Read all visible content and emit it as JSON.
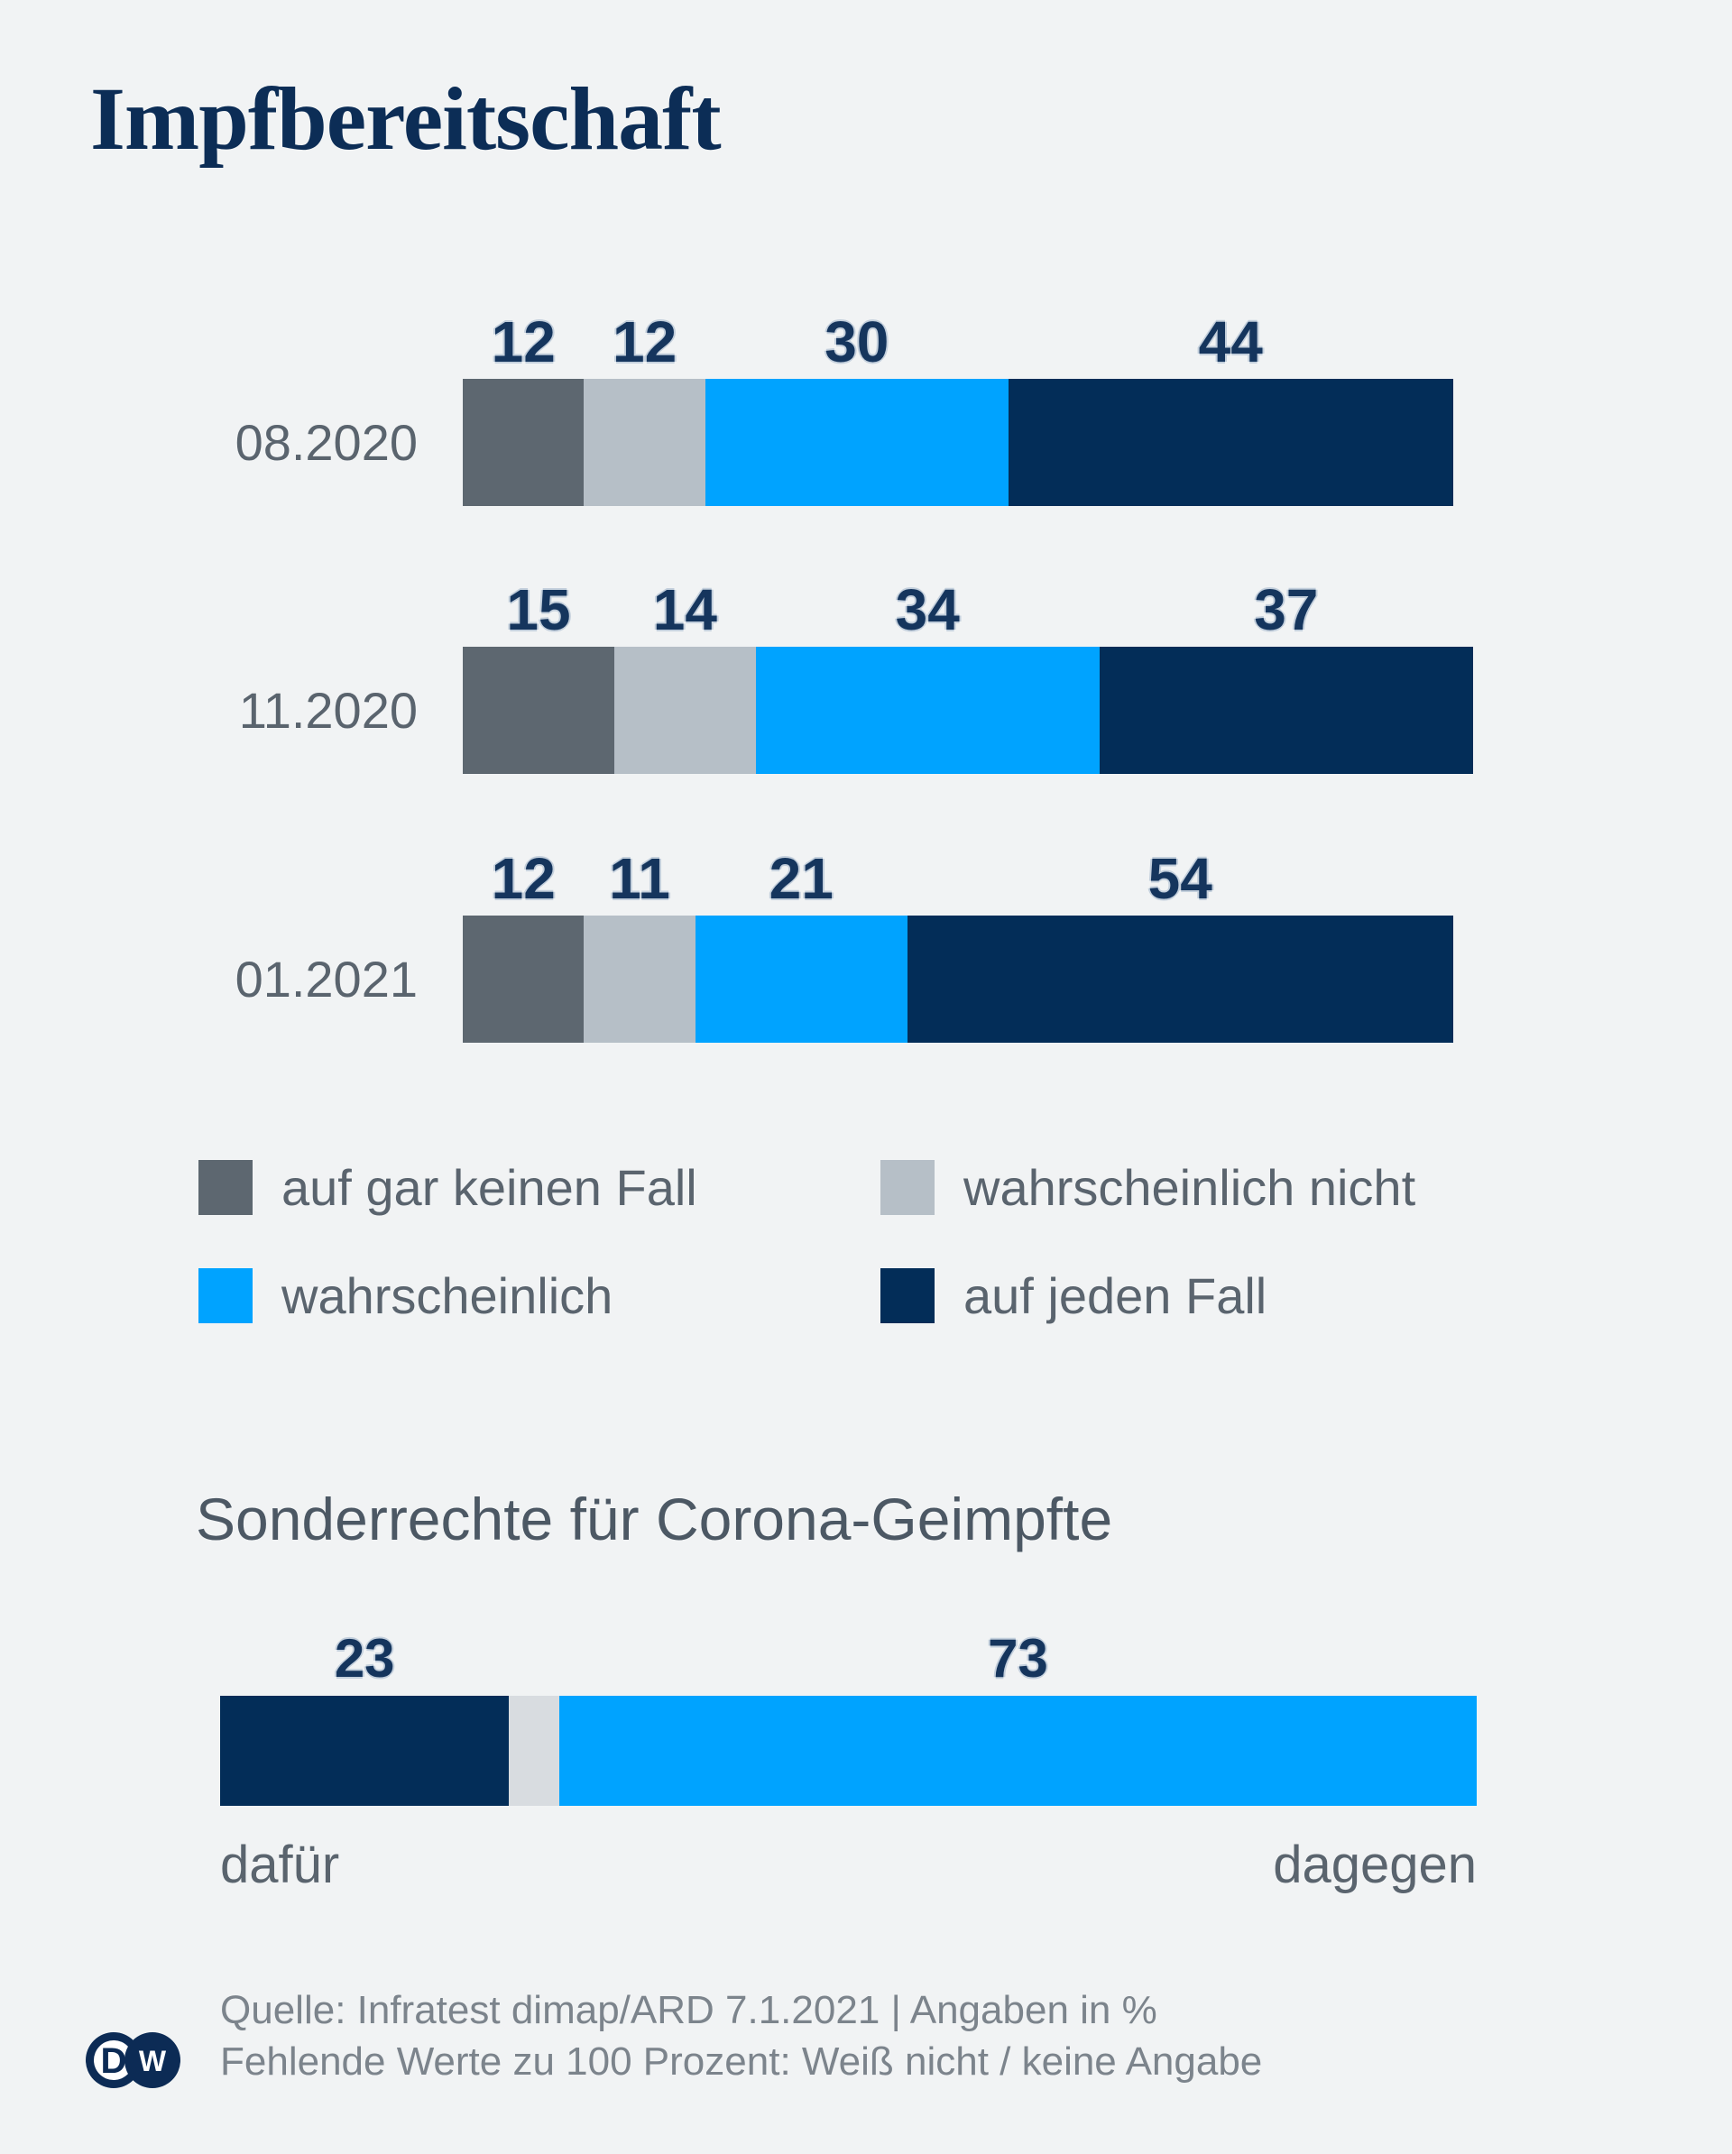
{
  "title": "Impfbereitschaft",
  "colors": {
    "background": "#f1f3f4",
    "title_text": "#0c2d56",
    "number_text": "#15355d",
    "number_halo": "#c3cfdc",
    "label_text": "#5a646e",
    "section_title_text": "#4c5864",
    "footer_text": "#7c848c",
    "gray_dark": "#5d6770",
    "gray_light": "#b6bfc7",
    "blue": "#00a3ff",
    "navy_dark": "#032d58",
    "gap_gray": "#d8dce0",
    "logo_navy": "#0c2b55",
    "logo_white": "#ffffff"
  },
  "chart_data": [
    {
      "type": "bar",
      "variant": "stacked-horizontal",
      "title": "Impfbereitschaft",
      "unit": "%",
      "xlim": [
        0,
        100
      ],
      "grid": false,
      "legend_position": "below",
      "categories": [
        "08.2020",
        "11.2020",
        "01.2021"
      ],
      "series": [
        {
          "name": "auf gar keinen Fall",
          "color_key": "gray_dark",
          "values": [
            12,
            15,
            12
          ]
        },
        {
          "name": "wahrscheinlich nicht",
          "color_key": "gray_light",
          "values": [
            12,
            14,
            11
          ]
        },
        {
          "name": "wahrscheinlich",
          "color_key": "blue",
          "values": [
            30,
            34,
            21
          ]
        },
        {
          "name": "auf jeden Fall",
          "color_key": "navy_dark",
          "values": [
            44,
            37,
            54
          ]
        }
      ]
    },
    {
      "type": "bar",
      "variant": "stacked-horizontal",
      "title": "Sonderrechte für Corona-Geimpfte",
      "unit": "%",
      "xlim": [
        0,
        100
      ],
      "grid": false,
      "categories": [
        ""
      ],
      "series": [
        {
          "name": "dafür",
          "color_key": "navy_dark",
          "values": [
            23
          ],
          "show_value": true
        },
        {
          "name": "",
          "color_key": "gap_gray",
          "values": [
            4
          ],
          "show_value": false
        },
        {
          "name": "dagegen",
          "color_key": "blue",
          "values": [
            73
          ],
          "show_value": true
        }
      ],
      "axis_labels": {
        "left": "dafür",
        "right": "dagegen"
      }
    }
  ],
  "footer": {
    "source_line": "Quelle: Infratest dimap/ARD 7.1.2021 | Angaben in %",
    "note_line": "Fehlende Werte zu 100 Prozent: Weiß nicht / keine Angabe"
  },
  "logo": {
    "d": "D",
    "w": "W"
  }
}
